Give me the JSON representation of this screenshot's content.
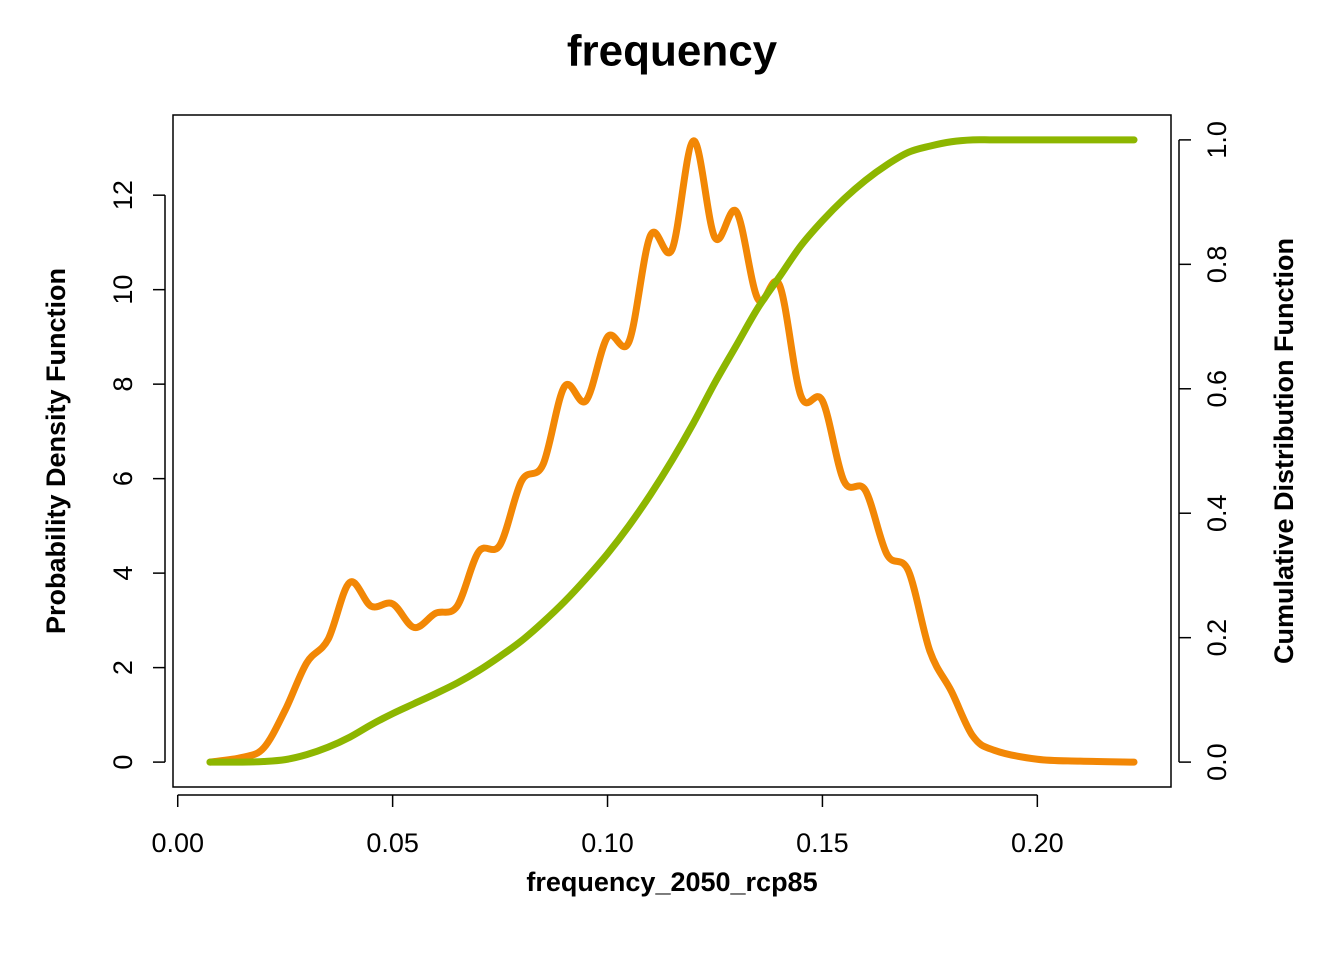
{
  "chart_data": {
    "type": "line",
    "title": "frequency",
    "x_label": "frequency_2050_rcp85",
    "y_label": "Probability Density Function",
    "y2_label": "Cumulative Distribution Function",
    "x": [
      0.0075,
      0.015,
      0.02,
      0.025,
      0.03,
      0.035,
      0.04,
      0.045,
      0.05,
      0.055,
      0.06,
      0.065,
      0.07,
      0.075,
      0.08,
      0.085,
      0.09,
      0.095,
      0.1,
      0.105,
      0.11,
      0.115,
      0.12,
      0.125,
      0.13,
      0.135,
      0.14,
      0.145,
      0.15,
      0.155,
      0.16,
      0.165,
      0.17,
      0.175,
      0.18,
      0.185,
      0.19,
      0.2,
      0.21,
      0.2225
    ],
    "series": [
      {
        "name": "Probability Density Function",
        "color": "#f28705",
        "axis": "y",
        "values": [
          0,
          0.1,
          0.3,
          1.1,
          2.1,
          2.6,
          3.8,
          3.3,
          3.35,
          2.85,
          3.15,
          3.3,
          4.45,
          4.6,
          5.95,
          6.3,
          7.95,
          7.65,
          9.0,
          8.9,
          11.15,
          10.85,
          13.15,
          11.1,
          11.65,
          9.8,
          10.1,
          7.75,
          7.65,
          5.95,
          5.75,
          4.4,
          4.05,
          2.35,
          1.5,
          0.55,
          0.25,
          0.06,
          0.02,
          0
        ]
      },
      {
        "name": "Cumulative Distribution Function",
        "color": "#8db600",
        "axis": "y2",
        "values": [
          0,
          0,
          0.001,
          0.004,
          0.012,
          0.024,
          0.04,
          0.06,
          0.078,
          0.094,
          0.11,
          0.127,
          0.147,
          0.17,
          0.195,
          0.225,
          0.258,
          0.295,
          0.335,
          0.38,
          0.43,
          0.485,
          0.545,
          0.61,
          0.67,
          0.73,
          0.78,
          0.83,
          0.87,
          0.905,
          0.935,
          0.96,
          0.98,
          0.99,
          0.997,
          1.0,
          1.0,
          1.0,
          1.0,
          1.0
        ]
      }
    ],
    "xlim": [
      -0.0011,
      0.2311
    ],
    "xticks": [
      {
        "value": 0,
        "label": "0.00"
      },
      {
        "value": 0.05,
        "label": "0.05"
      },
      {
        "value": 0.1,
        "label": "0.10"
      },
      {
        "value": 0.15,
        "label": "0.15"
      },
      {
        "value": 0.2,
        "label": "0.20"
      }
    ],
    "ylim": [
      -0.527,
      13.697
    ],
    "yticks": [
      0,
      2,
      4,
      6,
      8,
      10,
      12
    ],
    "y2lim": [
      -0.04,
      1.04
    ],
    "y2ticks": [
      {
        "value": 0,
        "label": "0.0"
      },
      {
        "value": 0.2,
        "label": "0.2"
      },
      {
        "value": 0.4,
        "label": "0.4"
      },
      {
        "value": 0.6,
        "label": "0.6"
      },
      {
        "value": 0.8,
        "label": "0.8"
      },
      {
        "value": 1,
        "label": "1.0"
      }
    ]
  }
}
